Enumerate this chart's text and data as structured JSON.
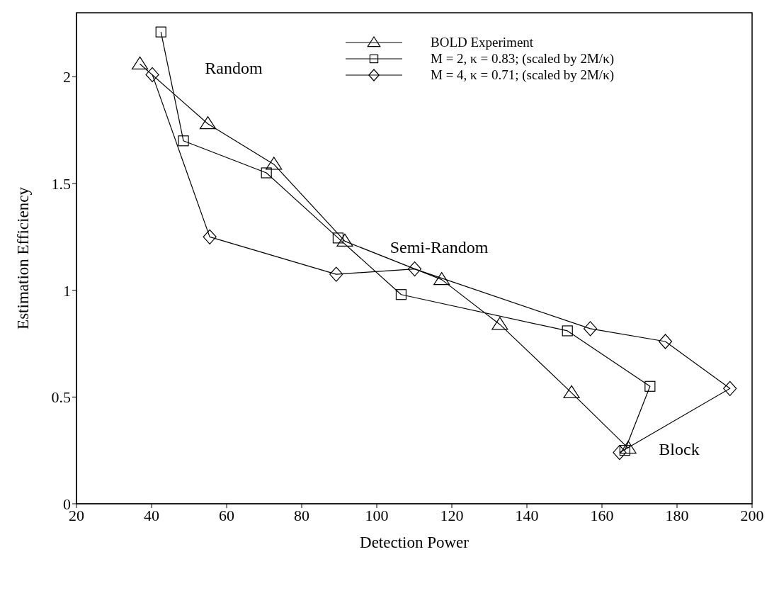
{
  "chart_data": {
    "type": "line",
    "xlabel": "Detection Power",
    "ylabel": "Estimation Efficiency",
    "xlim": [
      20,
      200
    ],
    "xticks": [
      20,
      40,
      60,
      80,
      100,
      120,
      140,
      160,
      180,
      200
    ],
    "ylim": [
      0,
      2.3
    ],
    "yticks": [
      0,
      0.5,
      1,
      1.5,
      2
    ],
    "grid": false,
    "legend": "top right",
    "line_style": "solid",
    "annotations": [
      "Random",
      "Semi-Random",
      "Block"
    ],
    "series": [
      {
        "name": "BOLD Experiment",
        "color": "#000000",
        "marker": "triangle",
        "x": [
          36.9,
          55,
          72.6,
          91.5,
          117.3,
          132.8,
          151.9,
          167
        ],
        "values": [
          2.06,
          1.78,
          1.59,
          1.23,
          1.05,
          0.84,
          0.52,
          0.26
        ]
      },
      {
        "name": "M = 2, κ = 0.83; (scaled by 2M/κ)",
        "color": "#000000",
        "marker": "square",
        "x": [
          42.5,
          48.5,
          70.6,
          89.7,
          106.5,
          150.8,
          172.8,
          166.1
        ],
        "values": [
          2.21,
          1.7,
          1.55,
          1.245,
          0.98,
          0.81,
          0.55,
          0.25
        ]
      },
      {
        "name": "M = 4, κ = 0.71; (scaled by 2M/κ)",
        "color": "#000000",
        "marker": "diamond",
        "x": [
          40.2,
          55.5,
          89.2,
          110.1,
          156.9,
          176.9,
          194.1,
          164.7
        ],
        "values": [
          2.01,
          1.25,
          1.075,
          1.1,
          0.82,
          0.76,
          0.54,
          0.24
        ]
      }
    ]
  }
}
